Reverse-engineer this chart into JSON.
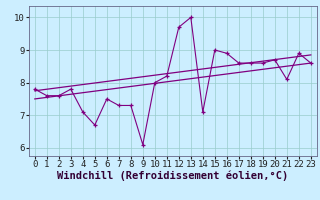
{
  "xlabel": "Windchill (Refroidissement éolien,°C)",
  "bg_color": "#cceeff",
  "line_color": "#800080",
  "grid_color": "#99cccc",
  "hours": [
    0,
    1,
    2,
    3,
    4,
    5,
    6,
    7,
    8,
    9,
    10,
    11,
    12,
    13,
    14,
    15,
    16,
    17,
    18,
    19,
    20,
    21,
    22,
    23
  ],
  "values": [
    7.8,
    7.6,
    7.6,
    7.8,
    7.1,
    6.7,
    7.5,
    7.3,
    7.3,
    6.1,
    8.0,
    8.2,
    9.7,
    10.0,
    7.1,
    9.0,
    8.9,
    8.6,
    8.6,
    8.6,
    8.7,
    8.1,
    8.9,
    8.6
  ],
  "trend_upper_start": 7.75,
  "trend_upper_end": 8.85,
  "trend_lower_start": 7.5,
  "trend_lower_end": 8.6,
  "xlim": [
    -0.5,
    23.5
  ],
  "ylim": [
    5.75,
    10.35
  ],
  "xticks": [
    0,
    1,
    2,
    3,
    4,
    5,
    6,
    7,
    8,
    9,
    10,
    11,
    12,
    13,
    14,
    15,
    16,
    17,
    18,
    19,
    20,
    21,
    22,
    23
  ],
  "yticks": [
    6,
    7,
    8,
    9,
    10
  ],
  "tick_fontsize": 6.5,
  "xlabel_fontsize": 7.5
}
